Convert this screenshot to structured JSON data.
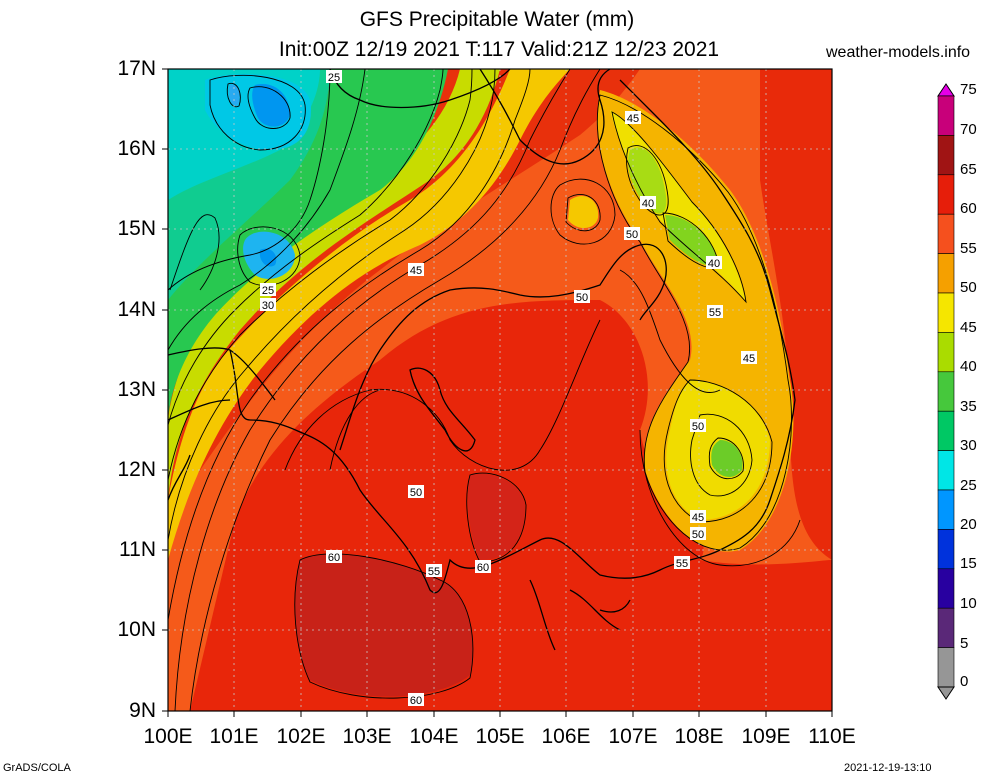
{
  "header": {
    "title_line1": "GFS Precipitable Water (mm)",
    "title_line2": "Init:00Z 12/19 2021 T:117 Valid:21Z 12/23 2021",
    "site": "weather-models.info"
  },
  "axes": {
    "lat_labels": [
      "17N",
      "16N",
      "15N",
      "14N",
      "13N",
      "12N",
      "11N",
      "10N",
      "9N"
    ],
    "lon_labels": [
      "100E",
      "101E",
      "102E",
      "103E",
      "104E",
      "105E",
      "106E",
      "107E",
      "108E",
      "109E",
      "110E"
    ]
  },
  "colorbar": {
    "labels": [
      "75",
      "70",
      "65",
      "60",
      "55",
      "50",
      "45",
      "40",
      "35",
      "30",
      "25",
      "20",
      "15",
      "10",
      "5",
      "0"
    ],
    "colors": [
      "#e600e6",
      "#c8007a",
      "#a01414",
      "#e61e0a",
      "#f5501e",
      "#f5a000",
      "#f5e600",
      "#aadc00",
      "#46c83c",
      "#00c864",
      "#00e6e6",
      "#0096ff",
      "#0032dc",
      "#2800a0",
      "#5a2878",
      "#969696"
    ]
  },
  "contour_labels": [
    "25",
    "45",
    "40",
    "50",
    "40",
    "45",
    "50",
    "55",
    "45",
    "25",
    "30",
    "50",
    "50",
    "60",
    "55",
    "60",
    "45",
    "50",
    "55",
    "60"
  ],
  "footer": {
    "left": "GrADS/COLA",
    "right": "2021-12-19-13:10"
  }
}
